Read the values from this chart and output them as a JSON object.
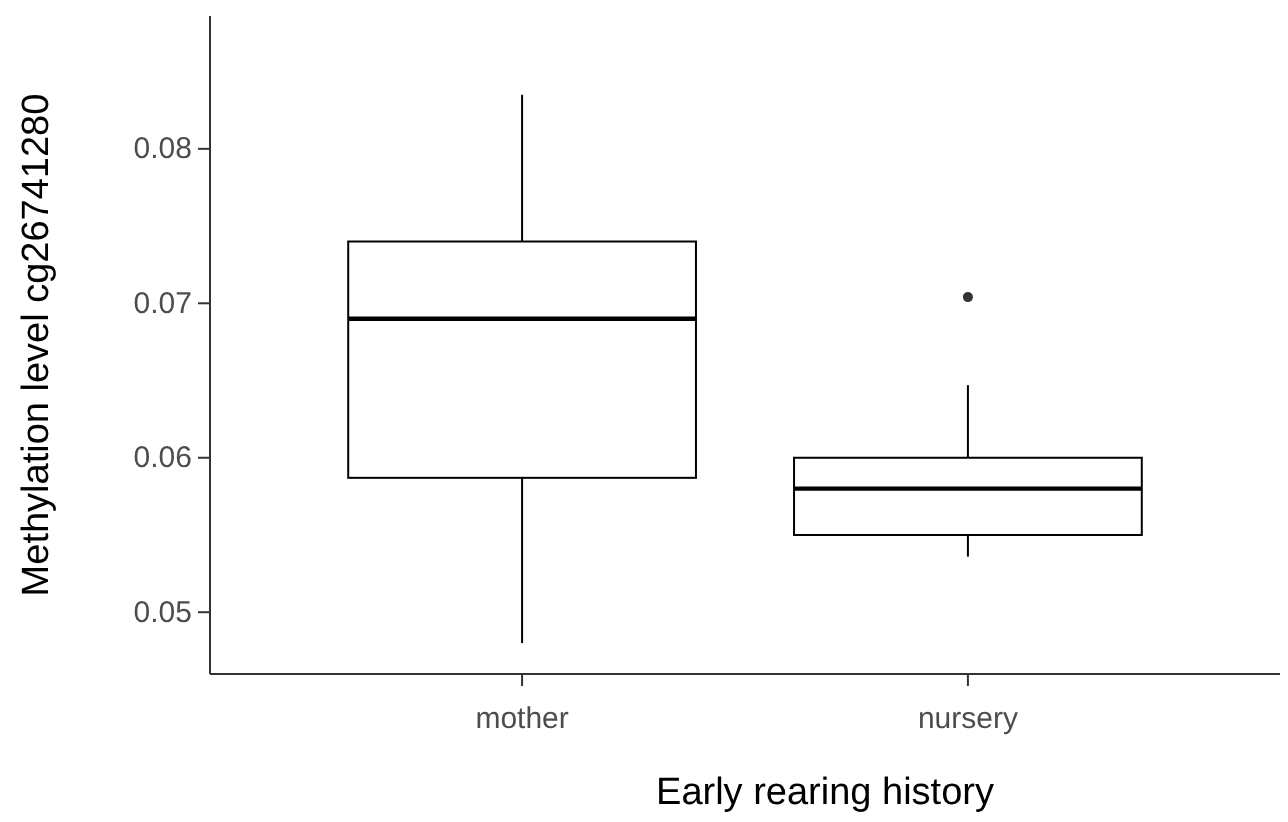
{
  "chart_data": {
    "type": "box",
    "xlabel": "Early rearing history",
    "ylabel": "Methylation level cg26741280",
    "categories": [
      "mother",
      "nursery"
    ],
    "boxes": [
      {
        "low": 0.048,
        "q1": 0.0587,
        "median": 0.069,
        "q3": 0.074,
        "high": 0.0835
      },
      {
        "low": 0.0536,
        "q1": 0.055,
        "median": 0.058,
        "q3": 0.06,
        "high": 0.0647,
        "outliers": [
          0.0704
        ]
      }
    ],
    "ylim": [
      0.046,
      0.0886
    ],
    "yticks": [
      0.05,
      0.06,
      0.07,
      0.08
    ],
    "grid": false
  }
}
